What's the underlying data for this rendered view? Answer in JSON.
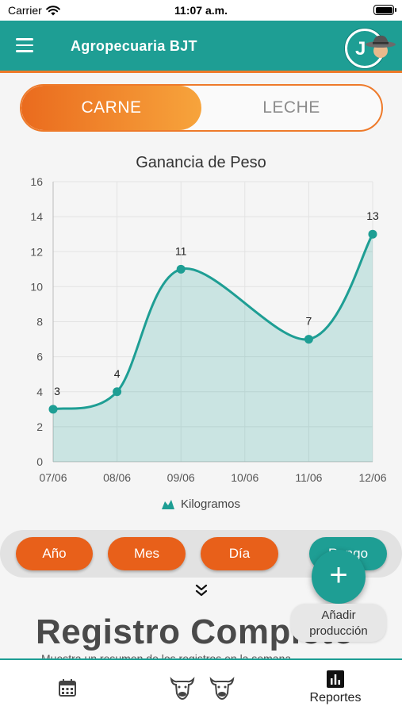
{
  "status": {
    "carrier": "Carrier",
    "time": "11:07 a.m."
  },
  "header": {
    "title": "Agropecuaria BJT",
    "avatar_letter": "J"
  },
  "segment": {
    "active": "CARNE",
    "inactive": "LECHE"
  },
  "chart_data": {
    "type": "line",
    "title": "Ganancia de Peso",
    "x": [
      "07/06",
      "08/06",
      "09/06",
      "10/06",
      "11/06",
      "12/06"
    ],
    "series": [
      {
        "name": "Kilogramos",
        "points": [
          {
            "x": "07/06",
            "y": 3
          },
          {
            "x": "08/06",
            "y": 4
          },
          {
            "x": "09/06",
            "y": 11
          },
          {
            "x": "11/06",
            "y": 7
          },
          {
            "x": "12/06",
            "y": 13
          }
        ]
      }
    ],
    "ylim": [
      0,
      16
    ],
    "yticks": [
      0,
      2,
      4,
      6,
      8,
      10,
      12,
      14,
      16
    ],
    "grid": true,
    "filled_area": true,
    "legend_position": "bottom-center",
    "color": "#1e9e94"
  },
  "filters": {
    "year": "Año",
    "month": "Mes",
    "day": "Día",
    "range": "Rango"
  },
  "fab": {
    "symbol": "+",
    "label_line1": "Añadir",
    "label_line2": "producción"
  },
  "section": {
    "title": "Registro Completo",
    "subtitle": "Muestra un resumen de los registros en la semana"
  },
  "nav": {
    "calendar_icon": "calendar-icon",
    "cattle_icon": "cow-icon",
    "reports_label": "Reportes"
  },
  "colors": {
    "primary": "#1e9e94",
    "accent": "#ee7a2a"
  }
}
